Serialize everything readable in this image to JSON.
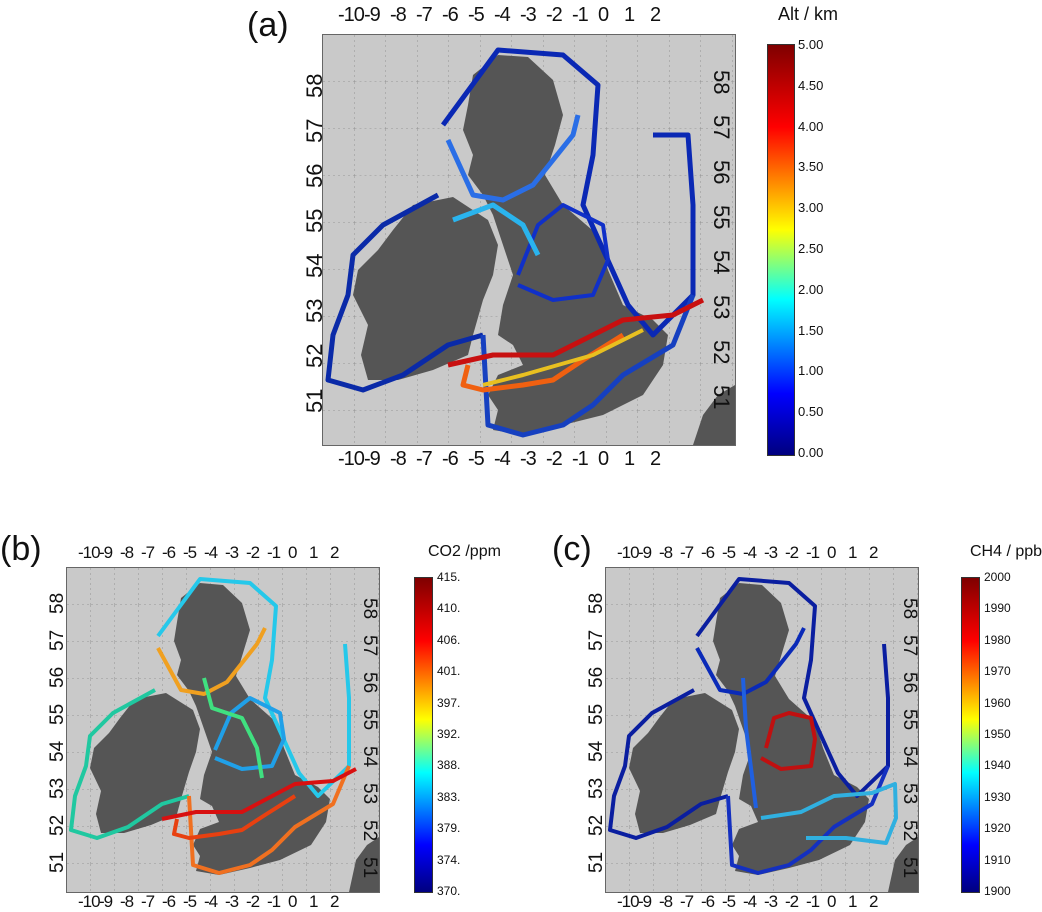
{
  "panels": [
    {
      "label": "(a)",
      "colorbar_title": "Alt  /  km",
      "colorbar_ticks": [
        "5.00",
        "4.50",
        "4.00",
        "3.50",
        "3.00",
        "2.50",
        "2.00",
        "1.50",
        "1.00",
        "0.50",
        "0.00"
      ],
      "lon_labels": [
        "-10",
        "-9",
        "-8",
        "-7",
        "-6",
        "-5",
        "-4",
        "-3",
        "-2",
        "-1",
        "0",
        "1",
        "2"
      ],
      "lat_labels": [
        "58",
        "57",
        "56",
        "55",
        "54",
        "53",
        "52",
        "51"
      ]
    },
    {
      "label": "(b)",
      "colorbar_title": "CO2  /ppm",
      "colorbar_ticks": [
        "415.",
        "410.",
        "406.",
        "401.",
        "397.",
        "392.",
        "388.",
        "383.",
        "379.",
        "374.",
        "370."
      ],
      "lon_labels": [
        "-10",
        "-9",
        "-8",
        "-7",
        "-6",
        "-5",
        "-4",
        "-3",
        "-2",
        "-1",
        "0",
        "1",
        "2"
      ],
      "lat_labels": [
        "58",
        "57",
        "56",
        "55",
        "54",
        "53",
        "52",
        "51"
      ]
    },
    {
      "label": "(c)",
      "colorbar_title": "CH4  /  ppb",
      "colorbar_ticks": [
        "2000",
        "1990",
        "1980",
        "1970",
        "1960",
        "1950",
        "1940",
        "1930",
        "1920",
        "1910",
        "1900"
      ],
      "lon_labels": [
        "-10",
        "-9",
        "-8",
        "-7",
        "-6",
        "-5",
        "-4",
        "-3",
        "-2",
        "-1",
        "0",
        "1",
        "2"
      ],
      "lat_labels": [
        "58",
        "57",
        "56",
        "55",
        "54",
        "53",
        "52",
        "51"
      ]
    }
  ],
  "colors": {
    "land": "#555555",
    "sea": "#c9c9c9",
    "jet_max": "#7f0000",
    "jet_min": "#00007f"
  }
}
